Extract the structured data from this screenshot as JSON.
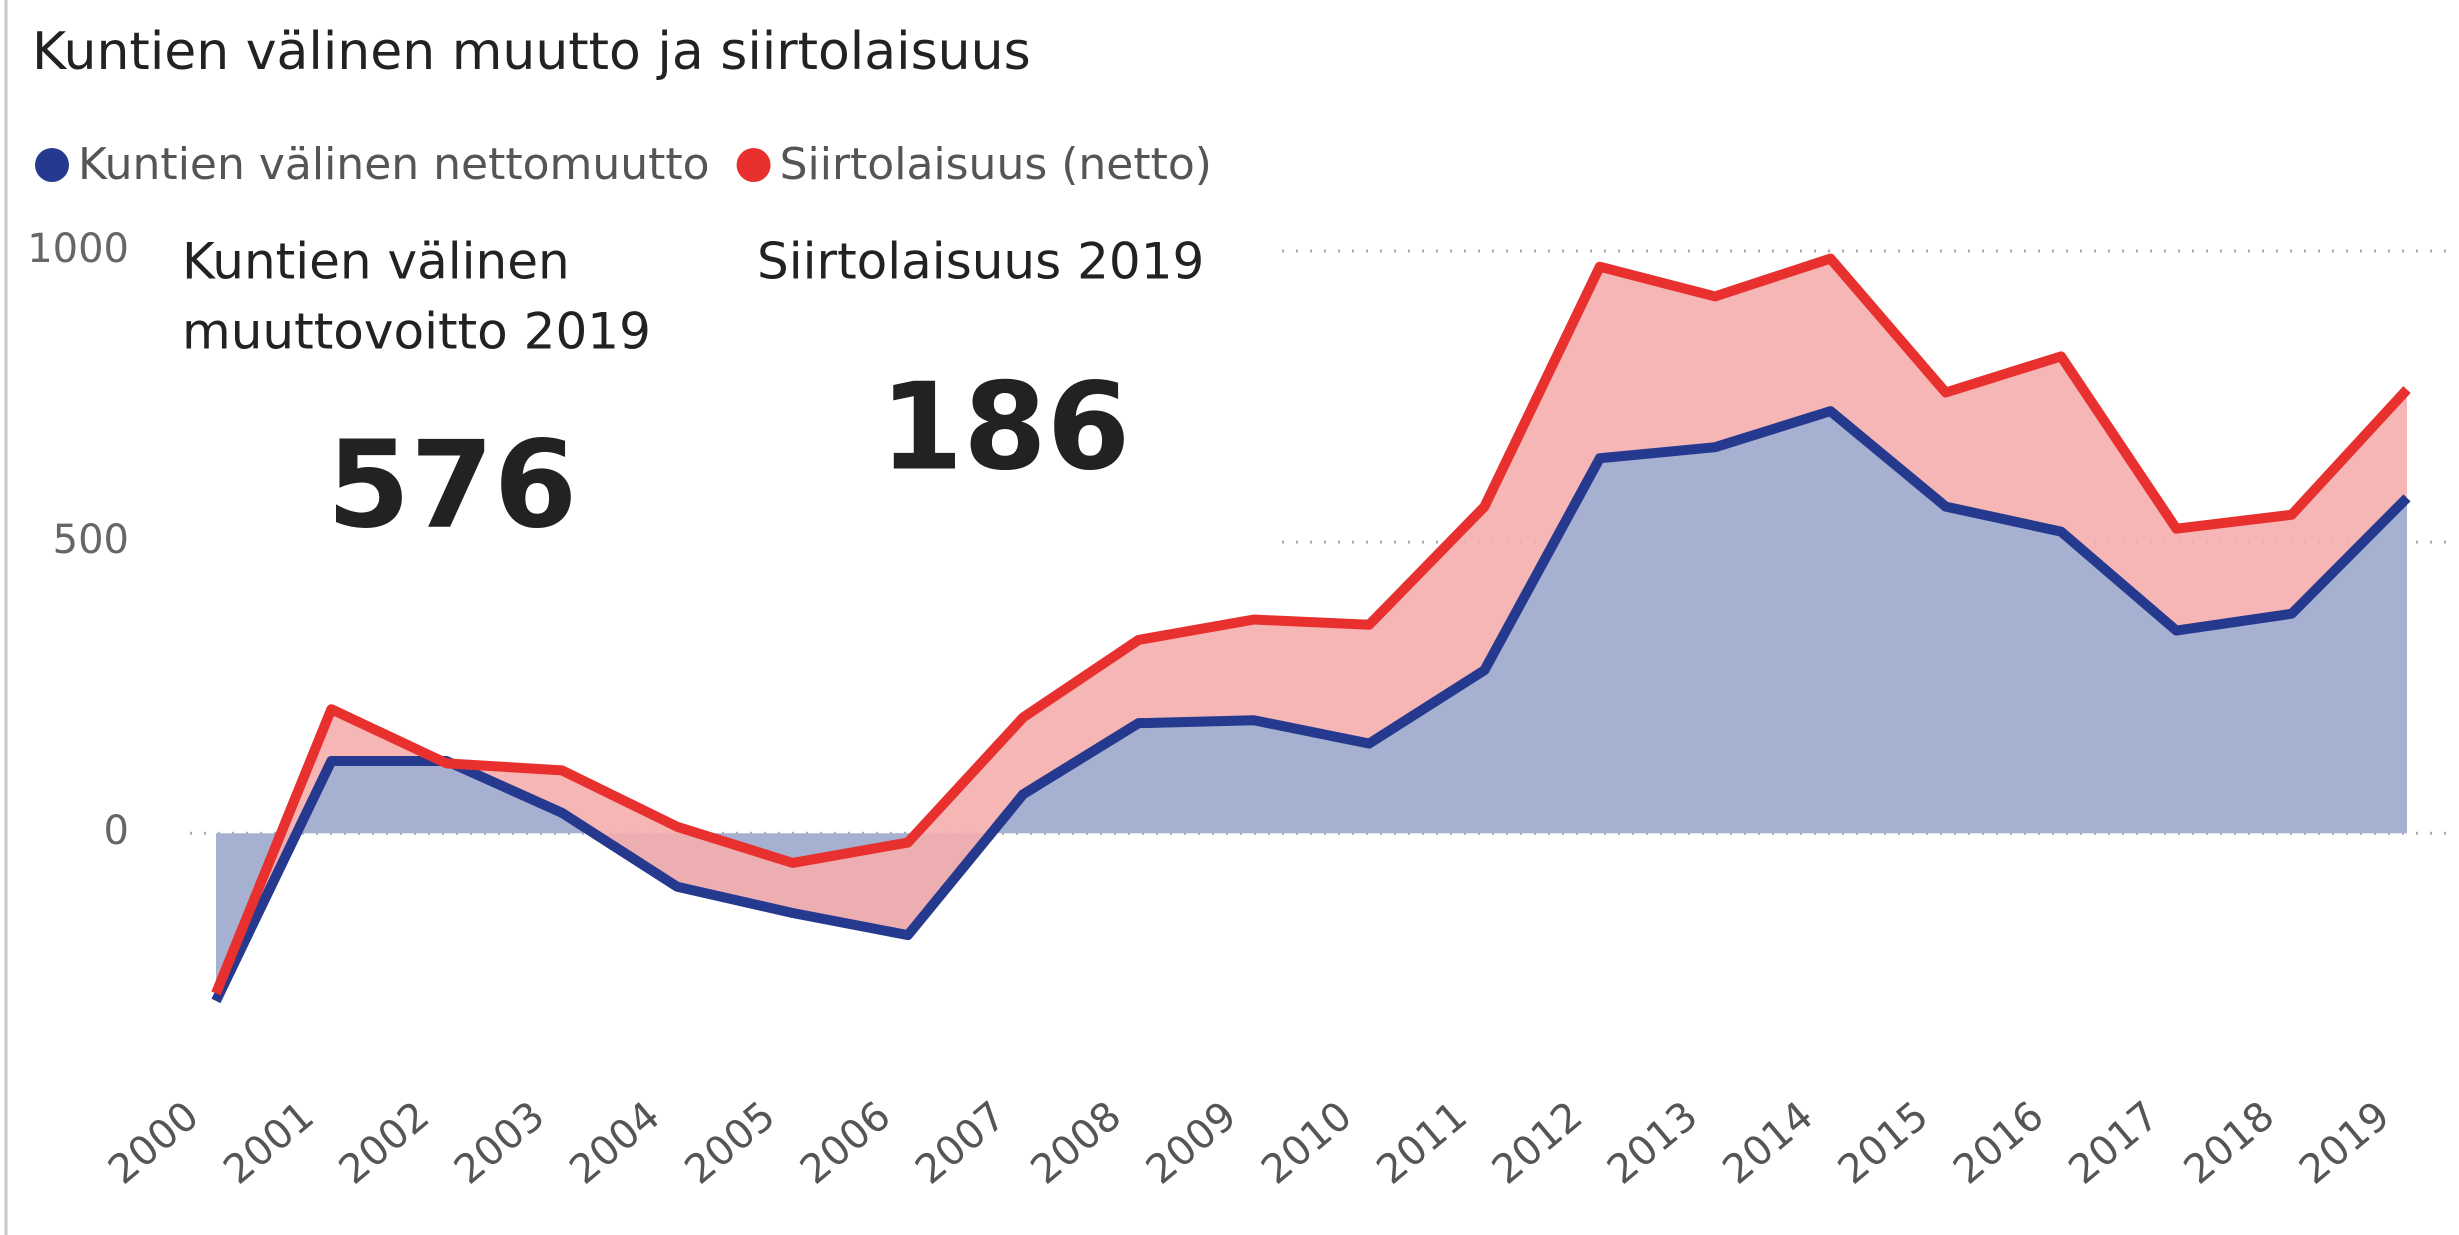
{
  "chart_data": {
    "type": "stacked_area",
    "title": "Kuntien välinen muutto ja siirtolaisuus",
    "categories": [
      "2000",
      "2001",
      "2002",
      "2003",
      "2004",
      "2005",
      "2006",
      "2007",
      "2008",
      "2009",
      "2010",
      "2011",
      "2012",
      "2013",
      "2014",
      "2015",
      "2016",
      "2017",
      "2018",
      "2019"
    ],
    "series": [
      {
        "name": "Kuntien välinen nettomuutto",
        "color": "#253a8f",
        "fill": "#a6b0d0",
        "values": [
          -288,
          124,
          124,
          35,
          -92,
          -137,
          -175,
          67,
          189,
          194,
          154,
          280,
          644,
          663,
          725,
          561,
          518,
          348,
          377,
          576
        ]
      },
      {
        "name": "Siirtolaisuus (netto)",
        "color": "#e8302f",
        "fill": "#f5aeae",
        "values": [
          13,
          89,
          -4,
          73,
          103,
          86,
          159,
          132,
          143,
          173,
          204,
          281,
          329,
          259,
          262,
          196,
          301,
          175,
          170,
          186
        ]
      }
    ],
    "ylim": [
      -350,
      1000
    ],
    "yticks": [
      0,
      500,
      1000
    ],
    "grid": true,
    "legend": "top-left",
    "cards": [
      {
        "label": [
          "Kuntien välinen",
          "muuttovoitto 2019"
        ],
        "value": 576
      },
      {
        "label": [
          "Siirtolaisuus 2019"
        ],
        "value": 186
      }
    ]
  }
}
